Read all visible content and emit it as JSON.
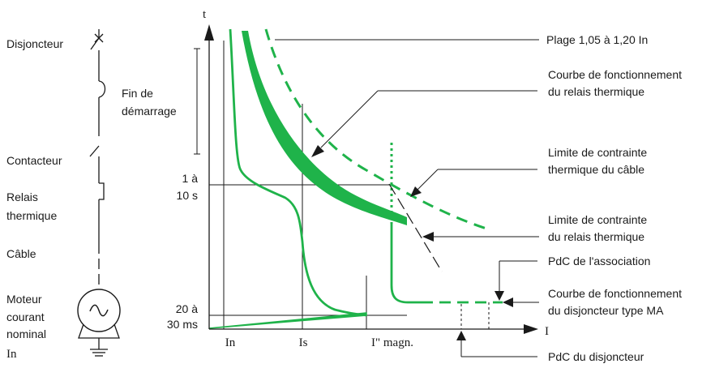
{
  "colors": {
    "curve": "#1fb34a",
    "line": "#1a1a1a",
    "background": "#ffffff"
  },
  "circuit": {
    "breaker": "Disjoncteur",
    "contactor": "Contacteur",
    "relay": [
      "Relais",
      "thermique"
    ],
    "cable": "Câble",
    "motor": [
      "Moteur",
      "courant",
      "nominal",
      "In"
    ],
    "motor_symbol": "~"
  },
  "start": {
    "line1": "Fin de",
    "line2": "démarrage"
  },
  "axes": {
    "y_title": "t",
    "x_title": "I",
    "y_ticks": [
      {
        "line1": "1 à",
        "line2": "10 s"
      },
      {
        "line1": "20 à",
        "line2": "30 ms"
      }
    ],
    "x_ticks": [
      "In",
      "Is",
      "I\" magn."
    ]
  },
  "annotations": {
    "plage": "Plage 1,05 à 1,20 In",
    "relay_curve": [
      "Courbe de fonctionnement",
      "du relais thermique"
    ],
    "cable_limit": [
      "Limite de contrainte",
      "thermique du câble"
    ],
    "relay_limit": [
      "Limite de contrainte",
      "du relais thermique"
    ],
    "pdc_assoc": "PdC de l'association",
    "breaker_curve": [
      "Courbe de fonctionnement",
      "du disjoncteur type MA"
    ],
    "pdc_breaker": "PdC du disjoncteur"
  }
}
